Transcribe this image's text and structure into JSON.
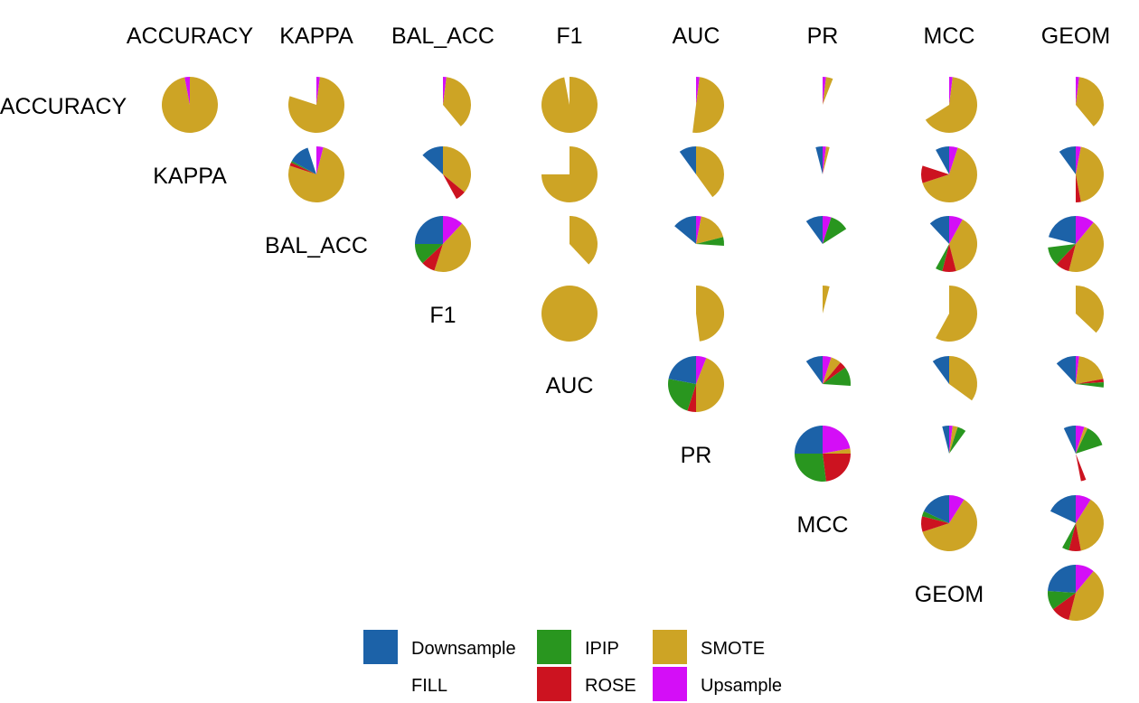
{
  "chart_data": {
    "type": "pie",
    "description_layout": "scatter-matrix of pie glyphs; upper triangle shows pairwise comparisons of metrics, diagonal shows metric names",
    "metrics": [
      "ACCURACY",
      "KAPPA",
      "BAL_ACC",
      "F1",
      "AUC",
      "PR",
      "MCC",
      "GEOM"
    ],
    "column_labels": [
      "ACCURACY",
      "KAPPA",
      "BAL_ACC",
      "F1",
      "AUC",
      "PR",
      "MCC",
      "GEOM"
    ],
    "categories": [
      "Downsample",
      "IPIP",
      "SMOTE",
      "FILL",
      "ROSE",
      "Upsample"
    ],
    "colors": {
      "Downsample": "#1c62a8",
      "IPIP": "#29961f",
      "SMOTE": "#cda425",
      "FILL": "#ffffff",
      "ROSE": "#cc1320",
      "Upsample": "#d40ef7"
    },
    "legend": {
      "position": "bottom",
      "items": [
        {
          "key": "Downsample",
          "label": "Downsample"
        },
        {
          "key": "IPIP",
          "label": "IPIP"
        },
        {
          "key": "SMOTE",
          "label": "SMOTE"
        },
        {
          "key": "FILL",
          "label": "FILL"
        },
        {
          "key": "ROSE",
          "label": "ROSE"
        },
        {
          "key": "Upsample",
          "label": "Upsample"
        }
      ]
    },
    "cells": [
      {
        "row": 0,
        "col": 0,
        "slices": [
          {
            "cat": "SMOTE",
            "start": 0.0,
            "end": 0.97
          },
          {
            "cat": "Upsample",
            "start": 0.97,
            "end": 1.0
          }
        ]
      },
      {
        "row": 0,
        "col": 1,
        "slices": [
          {
            "cat": "Upsample",
            "start": 0.0,
            "end": 0.02
          },
          {
            "cat": "SMOTE",
            "start": 0.02,
            "end": 0.8
          }
        ]
      },
      {
        "row": 0,
        "col": 2,
        "slices": [
          {
            "cat": "Upsample",
            "start": 0.0,
            "end": 0.02
          },
          {
            "cat": "SMOTE",
            "start": 0.02,
            "end": 0.39
          }
        ]
      },
      {
        "row": 0,
        "col": 3,
        "slices": [
          {
            "cat": "SMOTE",
            "start": 0.0,
            "end": 0.97
          }
        ]
      },
      {
        "row": 0,
        "col": 4,
        "slices": [
          {
            "cat": "Upsample",
            "start": 0.0,
            "end": 0.02
          },
          {
            "cat": "SMOTE",
            "start": 0.02,
            "end": 0.52
          }
        ]
      },
      {
        "row": 0,
        "col": 5,
        "slices": [
          {
            "cat": "Upsample",
            "start": 0.0,
            "end": 0.02
          },
          {
            "cat": "SMOTE",
            "start": 0.02,
            "end": 0.06
          }
        ]
      },
      {
        "row": 0,
        "col": 6,
        "slices": [
          {
            "cat": "Upsample",
            "start": 0.0,
            "end": 0.02
          },
          {
            "cat": "SMOTE",
            "start": 0.02,
            "end": 0.66
          }
        ]
      },
      {
        "row": 0,
        "col": 7,
        "slices": [
          {
            "cat": "Upsample",
            "start": 0.0,
            "end": 0.02
          },
          {
            "cat": "SMOTE",
            "start": 0.02,
            "end": 0.39
          }
        ]
      },
      {
        "row": 1,
        "col": 1,
        "slices": [
          {
            "cat": "Upsample",
            "start": 0.0,
            "end": 0.04
          },
          {
            "cat": "SMOTE",
            "start": 0.04,
            "end": 0.8
          },
          {
            "cat": "ROSE",
            "start": 0.8,
            "end": 0.82
          },
          {
            "cat": "IPIP",
            "start": 0.82,
            "end": 0.83
          },
          {
            "cat": "Downsample",
            "start": 0.83,
            "end": 0.95
          }
        ]
      },
      {
        "row": 1,
        "col": 2,
        "slices": [
          {
            "cat": "SMOTE",
            "start": 0.0,
            "end": 0.36
          },
          {
            "cat": "ROSE",
            "start": 0.36,
            "end": 0.42
          },
          {
            "cat": "Downsample",
            "start": 0.87,
            "end": 1.0
          }
        ]
      },
      {
        "row": 1,
        "col": 3,
        "slices": [
          {
            "cat": "SMOTE",
            "start": 0.0,
            "end": 0.75
          }
        ]
      },
      {
        "row": 1,
        "col": 4,
        "slices": [
          {
            "cat": "SMOTE",
            "start": 0.0,
            "end": 0.4
          },
          {
            "cat": "Downsample",
            "start": 0.9,
            "end": 1.0
          }
        ]
      },
      {
        "row": 1,
        "col": 5,
        "slices": [
          {
            "cat": "Upsample",
            "start": 0.0,
            "end": 0.02
          },
          {
            "cat": "SMOTE",
            "start": 0.02,
            "end": 0.04
          },
          {
            "cat": "Downsample",
            "start": 0.96,
            "end": 1.0
          }
        ]
      },
      {
        "row": 1,
        "col": 6,
        "slices": [
          {
            "cat": "Upsample",
            "start": 0.0,
            "end": 0.05
          },
          {
            "cat": "SMOTE",
            "start": 0.05,
            "end": 0.7
          },
          {
            "cat": "ROSE",
            "start": 0.7,
            "end": 0.8
          },
          {
            "cat": "Downsample",
            "start": 0.92,
            "end": 1.0
          }
        ]
      },
      {
        "row": 1,
        "col": 7,
        "slices": [
          {
            "cat": "Upsample",
            "start": 0.0,
            "end": 0.03
          },
          {
            "cat": "SMOTE",
            "start": 0.03,
            "end": 0.47
          },
          {
            "cat": "ROSE",
            "start": 0.47,
            "end": 0.5
          },
          {
            "cat": "Downsample",
            "start": 0.9,
            "end": 1.0
          }
        ]
      },
      {
        "row": 2,
        "col": 2,
        "slices": [
          {
            "cat": "Upsample",
            "start": 0.0,
            "end": 0.12
          },
          {
            "cat": "SMOTE",
            "start": 0.12,
            "end": 0.55
          },
          {
            "cat": "ROSE",
            "start": 0.55,
            "end": 0.63
          },
          {
            "cat": "IPIP",
            "start": 0.63,
            "end": 0.75
          },
          {
            "cat": "Downsample",
            "start": 0.75,
            "end": 1.0
          }
        ]
      },
      {
        "row": 2,
        "col": 3,
        "slices": [
          {
            "cat": "SMOTE",
            "start": 0.0,
            "end": 0.38
          }
        ]
      },
      {
        "row": 2,
        "col": 4,
        "slices": [
          {
            "cat": "Upsample",
            "start": 0.0,
            "end": 0.03
          },
          {
            "cat": "SMOTE",
            "start": 0.03,
            "end": 0.21
          },
          {
            "cat": "IPIP",
            "start": 0.21,
            "end": 0.26
          },
          {
            "cat": "Downsample",
            "start": 0.86,
            "end": 1.0
          }
        ]
      },
      {
        "row": 2,
        "col": 5,
        "slices": [
          {
            "cat": "Upsample",
            "start": 0.0,
            "end": 0.05
          },
          {
            "cat": "IPIP",
            "start": 0.05,
            "end": 0.16
          },
          {
            "cat": "Downsample",
            "start": 0.9,
            "end": 1.0
          }
        ]
      },
      {
        "row": 2,
        "col": 6,
        "slices": [
          {
            "cat": "Upsample",
            "start": 0.0,
            "end": 0.08
          },
          {
            "cat": "SMOTE",
            "start": 0.08,
            "end": 0.46
          },
          {
            "cat": "ROSE",
            "start": 0.46,
            "end": 0.54
          },
          {
            "cat": "IPIP",
            "start": 0.54,
            "end": 0.58
          },
          {
            "cat": "Downsample",
            "start": 0.88,
            "end": 1.0
          }
        ]
      },
      {
        "row": 2,
        "col": 7,
        "slices": [
          {
            "cat": "Upsample",
            "start": 0.0,
            "end": 0.11
          },
          {
            "cat": "SMOTE",
            "start": 0.11,
            "end": 0.54
          },
          {
            "cat": "ROSE",
            "start": 0.54,
            "end": 0.62
          },
          {
            "cat": "IPIP",
            "start": 0.62,
            "end": 0.73
          },
          {
            "cat": "Downsample",
            "start": 0.79,
            "end": 1.0
          }
        ]
      },
      {
        "row": 3,
        "col": 3,
        "slices": [
          {
            "cat": "SMOTE",
            "start": 0.0,
            "end": 1.0
          }
        ]
      },
      {
        "row": 3,
        "col": 4,
        "slices": [
          {
            "cat": "SMOTE",
            "start": 0.0,
            "end": 0.48
          }
        ]
      },
      {
        "row": 3,
        "col": 5,
        "slices": [
          {
            "cat": "SMOTE",
            "start": 0.0,
            "end": 0.04
          }
        ]
      },
      {
        "row": 3,
        "col": 6,
        "slices": [
          {
            "cat": "SMOTE",
            "start": 0.0,
            "end": 0.58
          }
        ]
      },
      {
        "row": 3,
        "col": 7,
        "slices": [
          {
            "cat": "SMOTE",
            "start": 0.0,
            "end": 0.37
          }
        ]
      },
      {
        "row": 4,
        "col": 4,
        "slices": [
          {
            "cat": "Upsample",
            "start": 0.0,
            "end": 0.06
          },
          {
            "cat": "SMOTE",
            "start": 0.06,
            "end": 0.5
          },
          {
            "cat": "ROSE",
            "start": 0.5,
            "end": 0.55
          },
          {
            "cat": "IPIP",
            "start": 0.55,
            "end": 0.78
          },
          {
            "cat": "Downsample",
            "start": 0.78,
            "end": 1.0
          }
        ]
      },
      {
        "row": 4,
        "col": 5,
        "slices": [
          {
            "cat": "Upsample",
            "start": 0.0,
            "end": 0.05
          },
          {
            "cat": "SMOTE",
            "start": 0.05,
            "end": 0.11
          },
          {
            "cat": "ROSE",
            "start": 0.11,
            "end": 0.15
          },
          {
            "cat": "IPIP",
            "start": 0.15,
            "end": 0.26
          },
          {
            "cat": "Downsample",
            "start": 0.9,
            "end": 1.0
          }
        ]
      },
      {
        "row": 4,
        "col": 6,
        "slices": [
          {
            "cat": "SMOTE",
            "start": 0.0,
            "end": 0.35
          },
          {
            "cat": "Downsample",
            "start": 0.9,
            "end": 1.0
          }
        ]
      },
      {
        "row": 4,
        "col": 7,
        "slices": [
          {
            "cat": "Upsample",
            "start": 0.0,
            "end": 0.02
          },
          {
            "cat": "SMOTE",
            "start": 0.02,
            "end": 0.22
          },
          {
            "cat": "ROSE",
            "start": 0.22,
            "end": 0.24
          },
          {
            "cat": "IPIP",
            "start": 0.24,
            "end": 0.27
          },
          {
            "cat": "Downsample",
            "start": 0.88,
            "end": 1.0
          }
        ]
      },
      {
        "row": 5,
        "col": 5,
        "slices": [
          {
            "cat": "Upsample",
            "start": 0.0,
            "end": 0.22
          },
          {
            "cat": "SMOTE",
            "start": 0.22,
            "end": 0.25
          },
          {
            "cat": "ROSE",
            "start": 0.25,
            "end": 0.48
          },
          {
            "cat": "IPIP",
            "start": 0.48,
            "end": 0.75
          },
          {
            "cat": "Downsample",
            "start": 0.75,
            "end": 1.0
          }
        ]
      },
      {
        "row": 5,
        "col": 6,
        "slices": [
          {
            "cat": "Upsample",
            "start": 0.0,
            "end": 0.02
          },
          {
            "cat": "SMOTE",
            "start": 0.02,
            "end": 0.05
          },
          {
            "cat": "IPIP",
            "start": 0.05,
            "end": 0.1
          },
          {
            "cat": "Downsample",
            "start": 0.96,
            "end": 1.0
          }
        ]
      },
      {
        "row": 5,
        "col": 7,
        "slices": [
          {
            "cat": "Upsample",
            "start": 0.0,
            "end": 0.05
          },
          {
            "cat": "SMOTE",
            "start": 0.05,
            "end": 0.07
          },
          {
            "cat": "IPIP",
            "start": 0.07,
            "end": 0.2
          },
          {
            "cat": "ROSE",
            "start": 0.44,
            "end": 0.47
          },
          {
            "cat": "Downsample",
            "start": 0.93,
            "end": 1.0
          }
        ]
      },
      {
        "row": 6,
        "col": 6,
        "slices": [
          {
            "cat": "Upsample",
            "start": 0.0,
            "end": 0.09
          },
          {
            "cat": "SMOTE",
            "start": 0.09,
            "end": 0.7
          },
          {
            "cat": "ROSE",
            "start": 0.7,
            "end": 0.79
          },
          {
            "cat": "IPIP",
            "start": 0.79,
            "end": 0.82
          },
          {
            "cat": "Downsample",
            "start": 0.82,
            "end": 1.0
          }
        ]
      },
      {
        "row": 6,
        "col": 7,
        "slices": [
          {
            "cat": "Upsample",
            "start": 0.0,
            "end": 0.09
          },
          {
            "cat": "SMOTE",
            "start": 0.09,
            "end": 0.47
          },
          {
            "cat": "ROSE",
            "start": 0.47,
            "end": 0.54
          },
          {
            "cat": "IPIP",
            "start": 0.54,
            "end": 0.58
          },
          {
            "cat": "Downsample",
            "start": 0.82,
            "end": 1.0
          }
        ]
      },
      {
        "row": 7,
        "col": 7,
        "slices": [
          {
            "cat": "Upsample",
            "start": 0.0,
            "end": 0.11
          },
          {
            "cat": "SMOTE",
            "start": 0.11,
            "end": 0.54
          },
          {
            "cat": "ROSE",
            "start": 0.54,
            "end": 0.65
          },
          {
            "cat": "IPIP",
            "start": 0.65,
            "end": 0.76
          },
          {
            "cat": "Downsample",
            "start": 0.76,
            "end": 1.0
          }
        ]
      }
    ]
  }
}
